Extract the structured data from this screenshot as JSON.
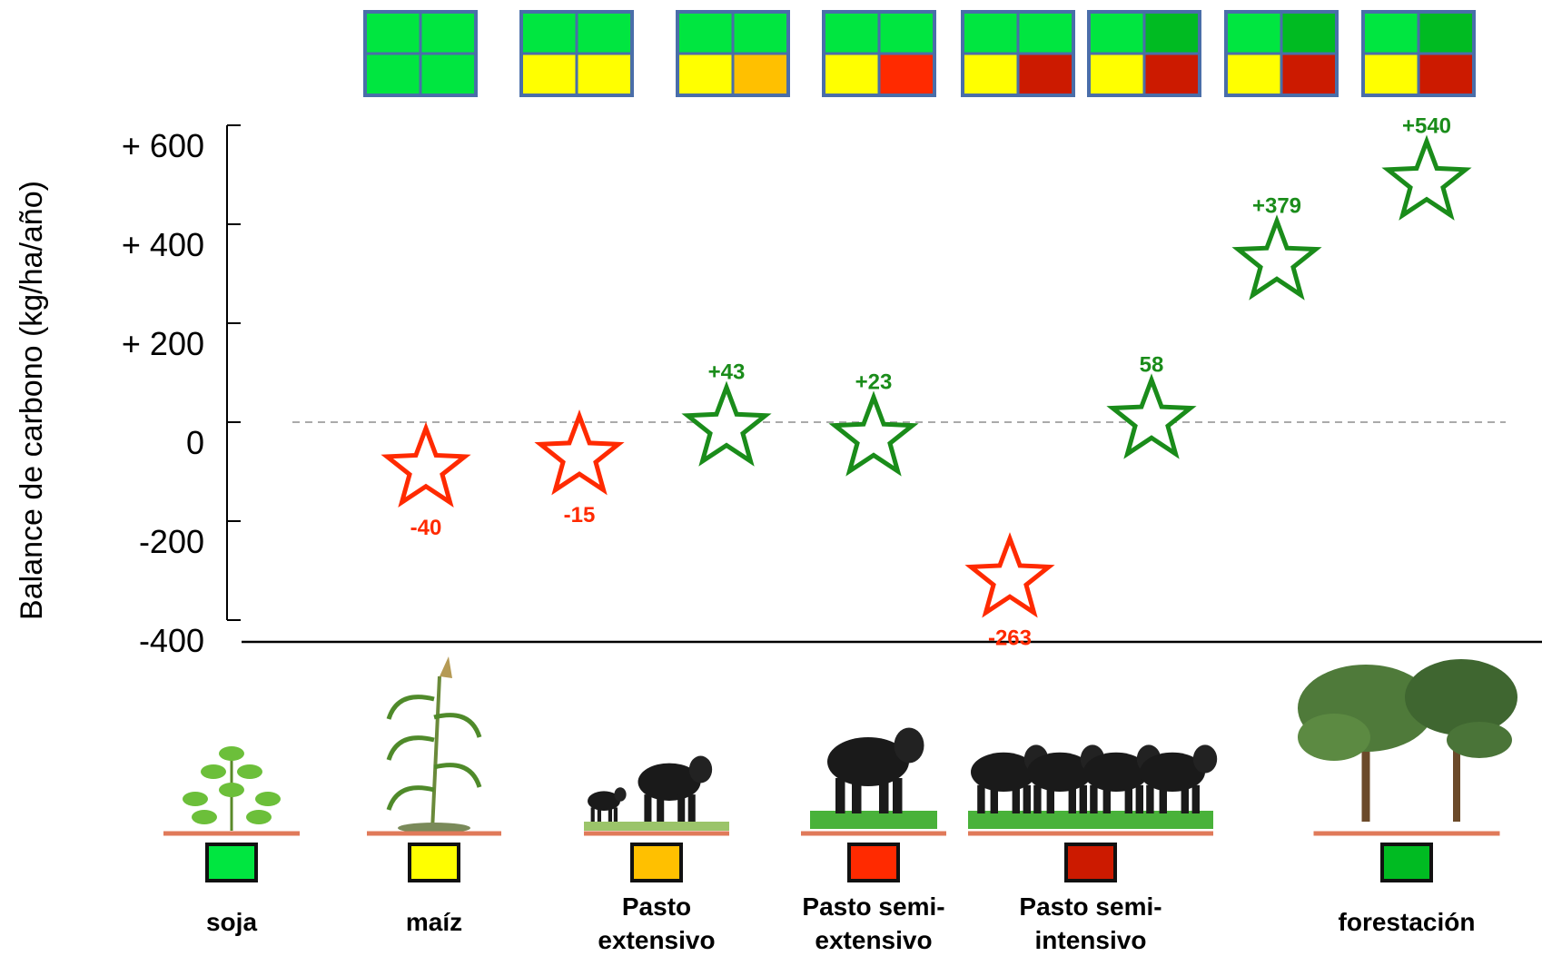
{
  "chart_data": {
    "type": "scatter",
    "title": "",
    "xlabel": "",
    "ylabel": "Balance de carbono (kg/ha/año)",
    "ylim": [
      -400,
      600
    ],
    "y_ticks": [
      {
        "value": 600,
        "label": "+ 600"
      },
      {
        "value": 400,
        "label": "+ 400"
      },
      {
        "value": 200,
        "label": "+ 200"
      },
      {
        "value": 0,
        "label": "0"
      },
      {
        "value": -200,
        "label": "-200"
      },
      {
        "value": -400,
        "label": "-400"
      }
    ],
    "zero_line": true,
    "marker": "star",
    "colors": {
      "negative": "#ff2a00",
      "positive": "#1a8c1a"
    },
    "points": [
      {
        "value": -40,
        "label": "-40"
      },
      {
        "value": -15,
        "label": "-15"
      },
      {
        "value": 43,
        "label": "+43"
      },
      {
        "value": 23,
        "label": "+23"
      },
      {
        "value": -263,
        "label": "-263"
      },
      {
        "value": 58,
        "label": "58"
      },
      {
        "value": 379,
        "label": "+379"
      },
      {
        "value": 540,
        "label": "+540"
      }
    ],
    "rotation_grids": [
      [
        "#00e640",
        "#00e640",
        "#00e640",
        "#00e640"
      ],
      [
        "#00e640",
        "#00e640",
        "#ffff00",
        "#ffff00"
      ],
      [
        "#00e640",
        "#00e640",
        "#ffff00",
        "#ffc000"
      ],
      [
        "#00e640",
        "#00e640",
        "#ffff00",
        "#ff2a00"
      ],
      [
        "#00e640",
        "#00e640",
        "#ffff00",
        "#cc1a00"
      ],
      [
        "#00e640",
        "#00bb22",
        "#ffff00",
        "#cc1a00"
      ],
      [
        "#00e640",
        "#00bb22",
        "#ffff00",
        "#cc1a00"
      ],
      [
        "#00e640",
        "#00bb22",
        "#ffff00",
        "#cc1a00"
      ]
    ],
    "categories": [
      {
        "lines": [
          "soja"
        ],
        "color": "#00e640",
        "icon": "soy-plant-icon"
      },
      {
        "lines": [
          "maíz"
        ],
        "color": "#ffff00",
        "icon": "corn-plant-icon"
      },
      {
        "lines": [
          "Pasto",
          "extensivo"
        ],
        "color": "#ffc000",
        "icon": "cattle-extensive-icon"
      },
      {
        "lines": [
          "Pasto semi-",
          "extensivo"
        ],
        "color": "#ff2a00",
        "icon": "cattle-semi-extensive-icon"
      },
      {
        "lines": [
          "Pasto semi-",
          "intensivo"
        ],
        "color": "#cc1a00",
        "icon": "cattle-herd-icon"
      },
      {
        "lines": [
          "forestación"
        ],
        "color": "#00bb22",
        "icon": "pine-trees-icon"
      }
    ]
  }
}
